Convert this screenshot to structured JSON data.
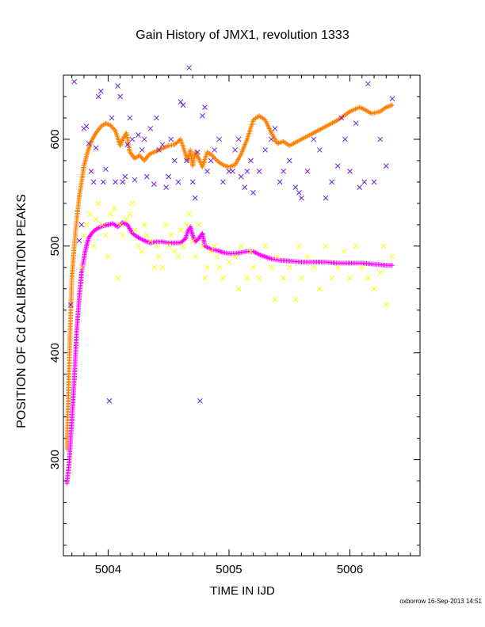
{
  "chart_data": {
    "type": "scatter",
    "title": "Gain History of JMX1, revolution 1333",
    "xlabel": "TIME IN IJD",
    "ylabel": "POSITION OF Cd CALIBRATION PEAKS",
    "footer": "oxborrow 16-Sep-2013 14:51",
    "xlim": [
      5003.63,
      5006.58
    ],
    "ylim": [
      210,
      660
    ],
    "xticks": [
      5004,
      5005,
      5006
    ],
    "yticks": [
      300,
      400,
      500,
      600
    ],
    "grid": false,
    "colors": {
      "orange": "#ff7f00",
      "magenta": "#ff00ff",
      "purple": "#6a1fe0",
      "yellow": "#ffff00"
    },
    "series": [
      {
        "marker": "plus",
        "color": "orange",
        "dense": true,
        "x": [
          5003.66,
          5003.68,
          5003.7,
          5003.72,
          5003.74,
          5003.76,
          5003.78,
          5003.8,
          5003.83,
          5003.86,
          5003.9,
          5003.94,
          5003.98,
          5004.02,
          5004.06,
          5004.1,
          5004.12,
          5004.15,
          5004.18,
          5004.22,
          5004.26,
          5004.3,
          5004.34,
          5004.38,
          5004.42,
          5004.46,
          5004.5,
          5004.55,
          5004.6,
          5004.64,
          5004.66,
          5004.68,
          5004.7,
          5004.72,
          5004.75,
          5004.78,
          5004.82,
          5004.86,
          5004.9,
          5004.95,
          5005.0,
          5005.05,
          5005.1,
          5005.15,
          5005.2,
          5005.25,
          5005.3,
          5005.35,
          5005.4,
          5005.45,
          5005.5,
          5005.6,
          5005.7,
          5005.8,
          5005.9,
          5006.0,
          5006.08,
          5006.12,
          5006.18,
          5006.25,
          5006.3,
          5006.35
        ],
        "y": [
          310,
          400,
          470,
          500,
          525,
          545,
          560,
          575,
          588,
          598,
          606,
          612,
          615,
          613,
          608,
          594,
          600,
          606,
          588,
          582,
          585,
          580,
          586,
          588,
          590,
          592,
          594,
          595,
          600,
          586,
          580,
          590,
          575,
          588,
          582,
          574,
          588,
          585,
          580,
          576,
          574,
          576,
          586,
          600,
          618,
          622,
          618,
          606,
          596,
          598,
          594,
          600,
          606,
          612,
          618,
          626,
          630,
          628,
          624,
          626,
          630,
          632
        ]
      },
      {
        "marker": "plus",
        "color": "magenta",
        "dense": true,
        "x": [
          5003.66,
          5003.68,
          5003.7,
          5003.72,
          5003.74,
          5003.76,
          5003.78,
          5003.81,
          5003.84,
          5003.88,
          5003.92,
          5003.96,
          5004.0,
          5004.04,
          5004.08,
          5004.12,
          5004.16,
          5004.2,
          5004.25,
          5004.3,
          5004.35,
          5004.4,
          5004.45,
          5004.5,
          5004.55,
          5004.6,
          5004.64,
          5004.66,
          5004.68,
          5004.7,
          5004.72,
          5004.75,
          5004.78,
          5004.8,
          5004.85,
          5004.9,
          5004.95,
          5005.0,
          5005.05,
          5005.1,
          5005.15,
          5005.2,
          5005.25,
          5005.3,
          5005.35,
          5005.4,
          5005.5,
          5005.6,
          5005.7,
          5005.8,
          5005.9,
          5006.0,
          5006.1,
          5006.2,
          5006.3,
          5006.35
        ],
        "y": [
          278,
          300,
          335,
          375,
          420,
          450,
          475,
          495,
          508,
          514,
          517,
          519,
          520,
          521,
          518,
          522,
          520,
          512,
          508,
          505,
          503,
          504,
          504,
          503,
          503,
          503,
          507,
          514,
          518,
          510,
          504,
          507,
          512,
          500,
          497,
          496,
          494,
          493,
          493,
          494,
          495,
          495,
          492,
          490,
          488,
          487,
          486,
          485,
          485,
          485,
          484,
          484,
          484,
          483,
          482,
          482
        ]
      },
      {
        "marker": "cross",
        "color": "purple",
        "dense": false,
        "x": [
          5003.69,
          5003.72,
          5003.76,
          5003.78,
          5003.8,
          5003.82,
          5003.84,
          5003.86,
          5003.88,
          5003.9,
          5003.92,
          5003.94,
          5003.96,
          5003.98,
          5004.01,
          5004.03,
          5004.06,
          5004.08,
          5004.1,
          5004.12,
          5004.14,
          5004.16,
          5004.18,
          5004.2,
          5004.22,
          5004.25,
          5004.28,
          5004.3,
          5004.32,
          5004.35,
          5004.38,
          5004.4,
          5004.42,
          5004.45,
          5004.48,
          5004.5,
          5004.52,
          5004.55,
          5004.58,
          5004.6,
          5004.62,
          5004.65,
          5004.67,
          5004.7,
          5004.72,
          5004.74,
          5004.76,
          5004.78,
          5004.8,
          5004.82,
          5004.85,
          5004.88,
          5004.92,
          5004.95,
          5005.0,
          5005.03,
          5005.05,
          5005.08,
          5005.1,
          5005.13,
          5005.15,
          5005.18,
          5005.2,
          5005.25,
          5005.3,
          5005.35,
          5005.38,
          5005.42,
          5005.45,
          5005.5,
          5005.55,
          5005.58,
          5005.6,
          5005.65,
          5005.7,
          5005.75,
          5005.8,
          5005.85,
          5005.9,
          5005.93,
          5005.96,
          5006.0,
          5006.05,
          5006.08,
          5006.12,
          5006.15,
          5006.2,
          5006.25,
          5006.3,
          5006.35
        ],
        "y": [
          445,
          654,
          505,
          520,
          610,
          612,
          596,
          570,
          560,
          592,
          640,
          645,
          560,
          572,
          355,
          620,
          560,
          650,
          640,
          560,
          565,
          595,
          620,
          600,
          562,
          604,
          590,
          600,
          565,
          610,
          558,
          620,
          590,
          595,
          555,
          565,
          600,
          580,
          560,
          635,
          632,
          580,
          667,
          560,
          545,
          588,
          355,
          622,
          630,
          570,
          580,
          590,
          600,
          560,
          570,
          570,
          590,
          600,
          565,
          555,
          570,
          580,
          550,
          570,
          590,
          600,
          610,
          560,
          570,
          580,
          555,
          550,
          545,
          570,
          600,
          590,
          545,
          560,
          575,
          620,
          600,
          570,
          615,
          555,
          560,
          652,
          560,
          600,
          575,
          638
        ]
      },
      {
        "marker": "cross",
        "color": "yellow",
        "dense": false,
        "x": [
          5003.78,
          5003.8,
          5003.82,
          5003.85,
          5003.88,
          5003.9,
          5003.92,
          5003.95,
          5003.98,
          5004.0,
          5004.02,
          5004.05,
          5004.08,
          5004.1,
          5004.12,
          5004.15,
          5004.18,
          5004.2,
          5004.22,
          5004.25,
          5004.28,
          5004.3,
          5004.32,
          5004.35,
          5004.38,
          5004.4,
          5004.42,
          5004.45,
          5004.48,
          5004.5,
          5004.52,
          5004.55,
          5004.58,
          5004.6,
          5004.62,
          5004.65,
          5004.67,
          5004.7,
          5004.72,
          5004.75,
          5004.78,
          5004.8,
          5004.82,
          5004.85,
          5004.88,
          5004.9,
          5004.92,
          5004.95,
          5005.0,
          5005.05,
          5005.08,
          5005.1,
          5005.15,
          5005.18,
          5005.2,
          5005.25,
          5005.3,
          5005.35,
          5005.38,
          5005.4,
          5005.45,
          5005.5,
          5005.55,
          5005.58,
          5005.6,
          5005.65,
          5005.7,
          5005.75,
          5005.8,
          5005.85,
          5005.9,
          5005.95,
          5006.0,
          5006.05,
          5006.1,
          5006.15,
          5006.2,
          5006.25,
          5006.28,
          5006.3,
          5006.35
        ],
        "y": [
          480,
          510,
          520,
          530,
          500,
          525,
          540,
          520,
          510,
          490,
          530,
          535,
          470,
          520,
          510,
          525,
          530,
          540,
          515,
          500,
          495,
          520,
          510,
          505,
          480,
          500,
          490,
          480,
          520,
          500,
          510,
          495,
          490,
          515,
          500,
          520,
          530,
          505,
          490,
          520,
          500,
          470,
          480,
          495,
          500,
          490,
          480,
          470,
          485,
          490,
          460,
          500,
          470,
          495,
          480,
          470,
          500,
          480,
          450,
          490,
          470,
          480,
          450,
          500,
          470,
          490,
          480,
          460,
          500,
          470,
          480,
          495,
          470,
          500,
          480,
          470,
          460,
          475,
          500,
          445,
          490
        ]
      }
    ]
  }
}
